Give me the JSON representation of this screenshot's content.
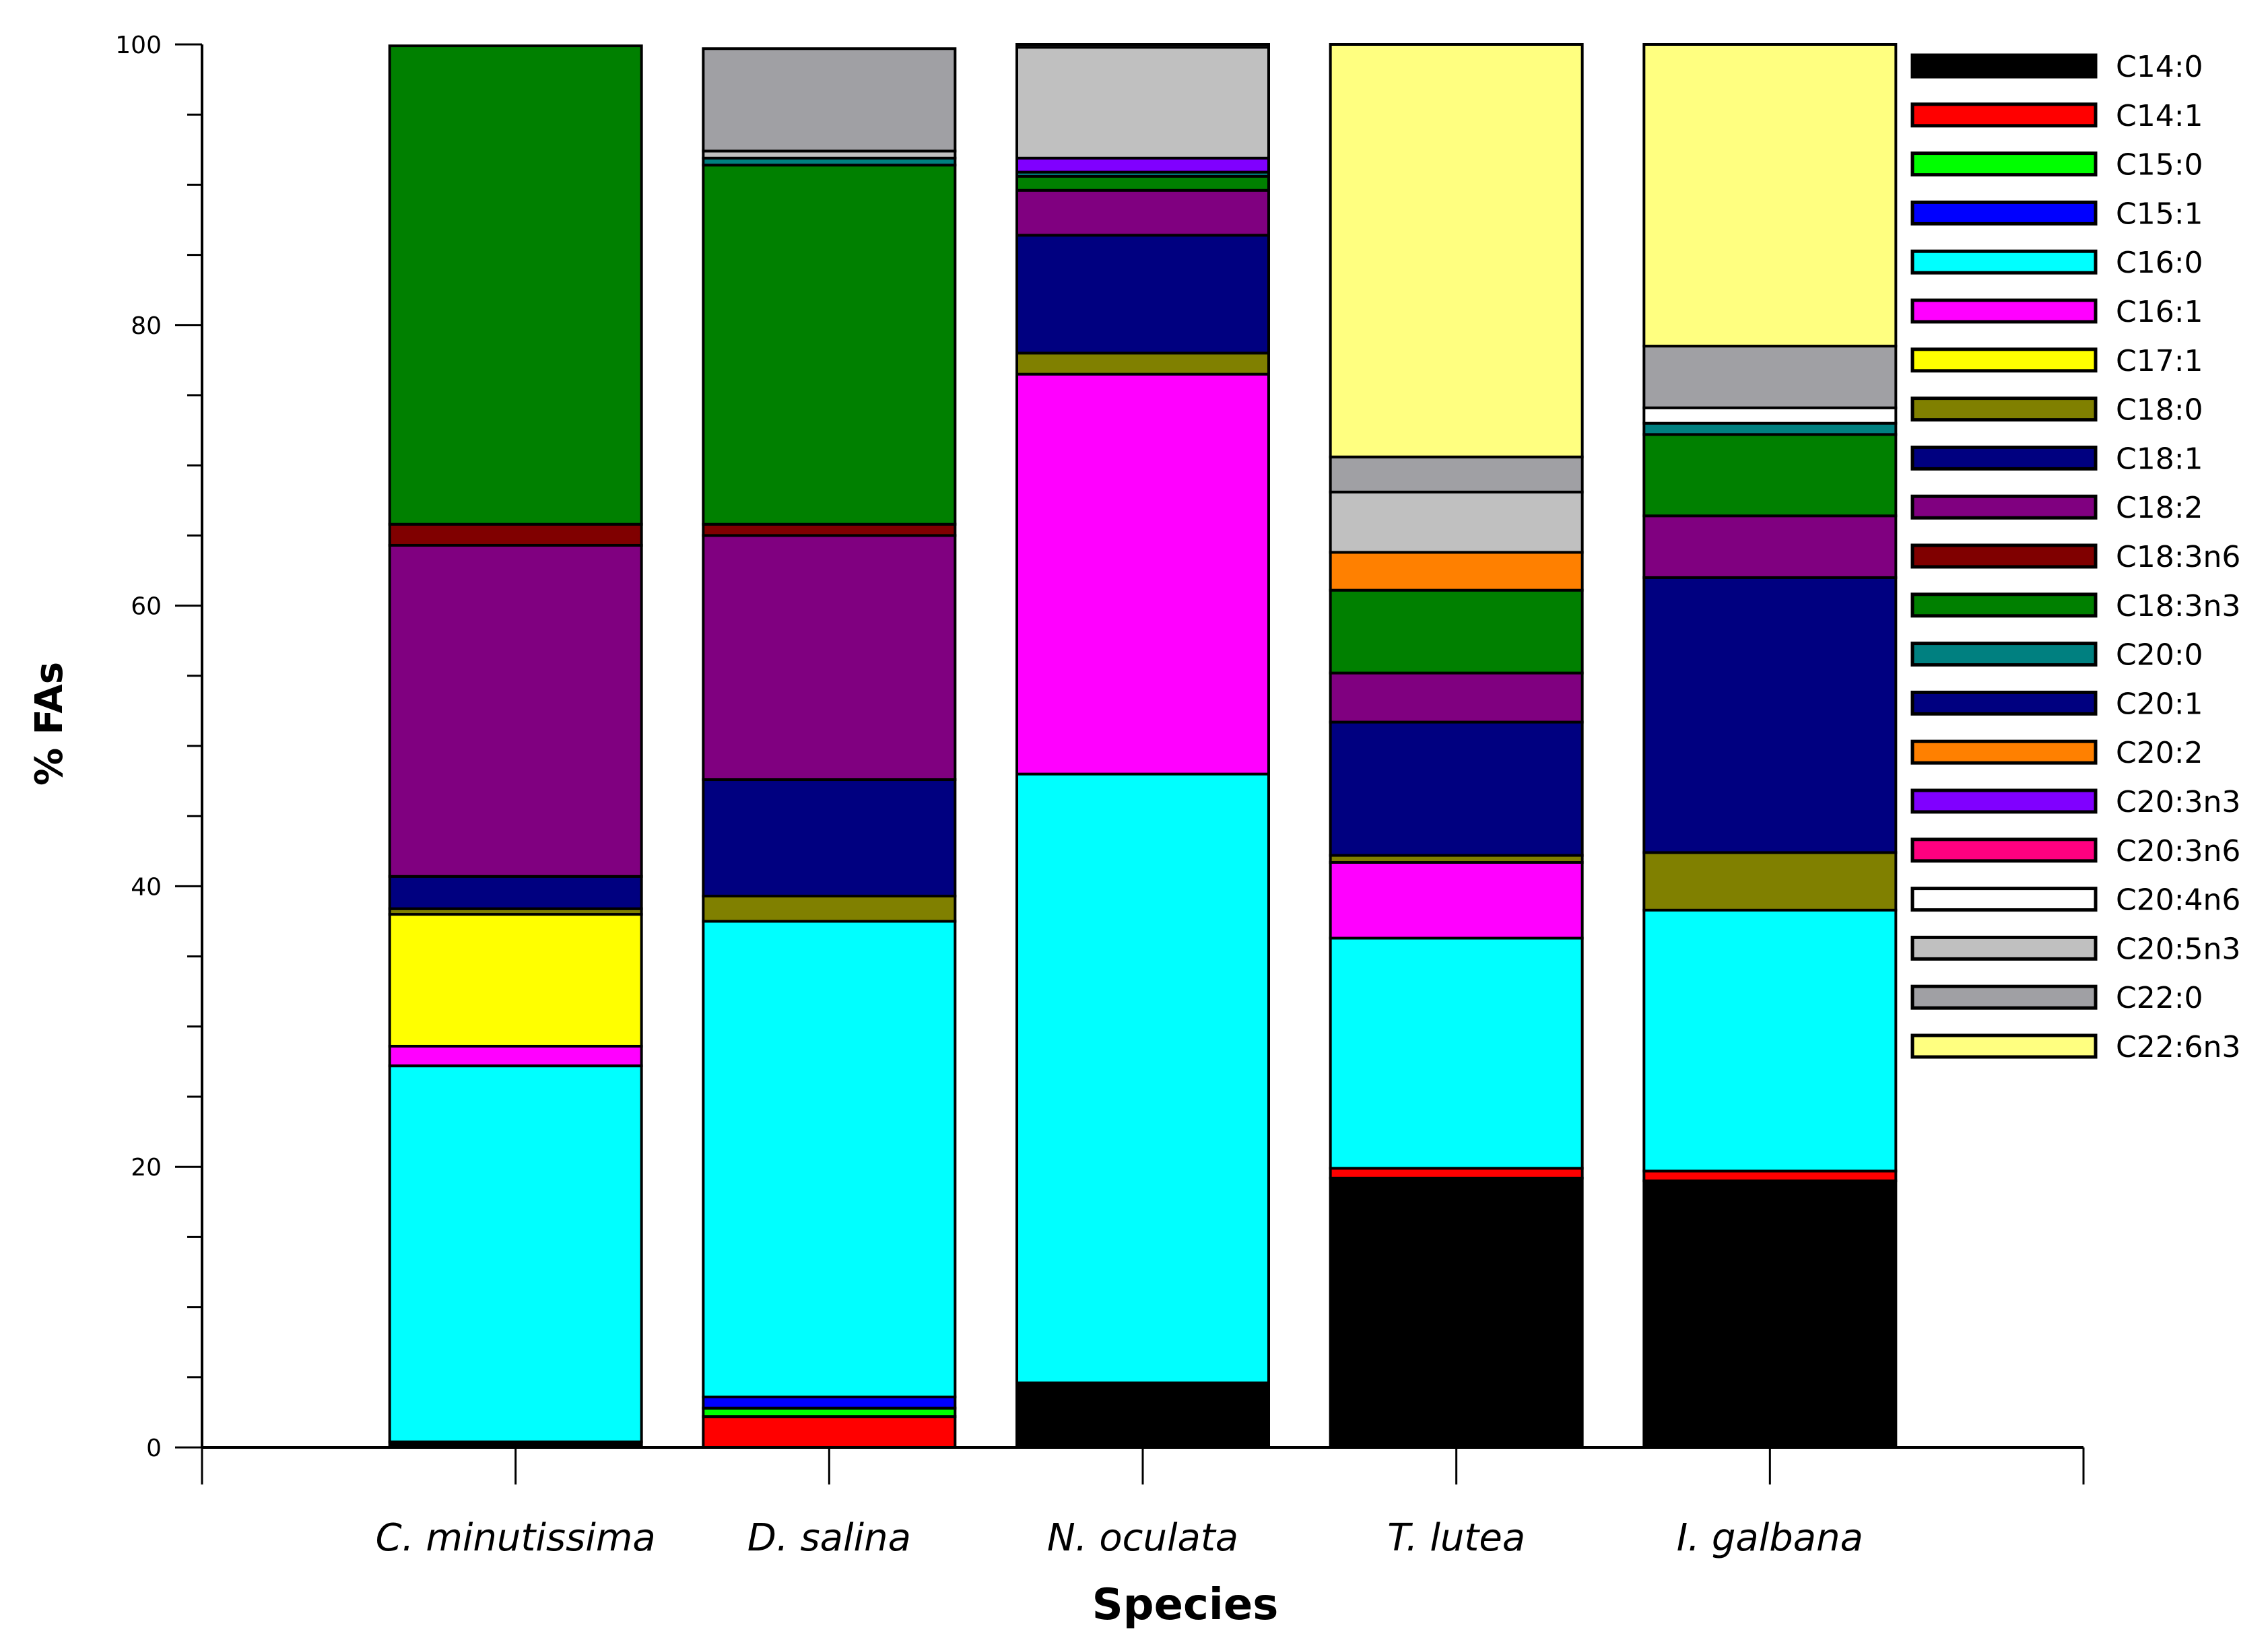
{
  "chart_data": {
    "type": "bar",
    "stacked": true,
    "xlabel": "Species",
    "ylabel": "% FAs",
    "ylim": [
      0,
      100
    ],
    "yticks": [
      0,
      20,
      40,
      60,
      80,
      100
    ],
    "legend_position": "right",
    "categories": [
      "C. minutissima",
      "D. salina",
      "N. oculata",
      "T. lutea",
      "I. galbana"
    ],
    "series": [
      {
        "name": "C14:0",
        "color": "#000000",
        "values": [
          0.4,
          0.0,
          4.6,
          19.2,
          19.0
        ]
      },
      {
        "name": "C14:1",
        "color": "#ff0000",
        "values": [
          0.0,
          2.2,
          0.0,
          0.7,
          0.7
        ]
      },
      {
        "name": "C15:0",
        "color": "#00ff00",
        "values": [
          0.0,
          0.6,
          0.0,
          0.0,
          0.0
        ]
      },
      {
        "name": "C15:1",
        "color": "#0000ff",
        "values": [
          0.0,
          0.8,
          0.0,
          0.0,
          0.0
        ]
      },
      {
        "name": "C16:0",
        "color": "#00ffff",
        "values": [
          26.8,
          33.9,
          43.4,
          16.4,
          18.6
        ]
      },
      {
        "name": "C16:1",
        "color": "#ff00ff",
        "values": [
          1.4,
          0.0,
          28.5,
          5.4,
          0.0
        ]
      },
      {
        "name": "C17:1",
        "color": "#ffff00",
        "values": [
          9.4,
          0.0,
          0.0,
          0.0,
          0.0
        ]
      },
      {
        "name": "C18:0",
        "color": "#808000",
        "values": [
          0.4,
          1.8,
          1.5,
          0.5,
          4.1
        ]
      },
      {
        "name": "C18:1",
        "color": "#000080",
        "values": [
          2.3,
          8.3,
          8.4,
          9.5,
          19.6
        ]
      },
      {
        "name": "C18:2",
        "color": "#800080",
        "values": [
          23.6,
          17.4,
          3.2,
          3.5,
          4.4
        ]
      },
      {
        "name": "C18:3n6",
        "color": "#800000",
        "values": [
          1.5,
          0.8,
          0.0,
          0.0,
          0.0
        ]
      },
      {
        "name": "C18:3n3",
        "color": "#008000",
        "values": [
          34.1,
          25.6,
          1.0,
          5.9,
          5.8
        ]
      },
      {
        "name": "C20:0",
        "color": "#008080",
        "values": [
          0.0,
          0.5,
          0.3,
          0.0,
          0.8
        ]
      },
      {
        "name": "C20:1",
        "color": "#000080",
        "values": [
          0.0,
          0.0,
          0.0,
          0.0,
          0.0
        ]
      },
      {
        "name": "C20:2",
        "color": "#ff8000",
        "values": [
          0.0,
          0.0,
          0.0,
          2.7,
          0.0
        ]
      },
      {
        "name": "C20:3n3",
        "color": "#8000ff",
        "values": [
          0.0,
          0.0,
          1.0,
          0.0,
          0.0
        ]
      },
      {
        "name": "C20:3n6",
        "color": "#ff0080",
        "values": [
          0.0,
          0.0,
          0.0,
          0.0,
          0.0
        ]
      },
      {
        "name": "C20:4n6",
        "color": "#ffffff",
        "values": [
          0.0,
          0.0,
          0.0,
          0.0,
          1.1
        ]
      },
      {
        "name": "C20:5n3",
        "color": "#c0c0c0",
        "values": [
          0.0,
          0.5,
          7.9,
          4.3,
          0.0
        ]
      },
      {
        "name": "C22:0",
        "color": "#a0a0a4",
        "values": [
          0.0,
          7.3,
          0.2,
          2.5,
          4.4
        ]
      },
      {
        "name": "C22:6n3",
        "color": "#ffff80",
        "values": [
          0.0,
          0.0,
          0.0,
          29.4,
          21.5
        ]
      }
    ]
  }
}
